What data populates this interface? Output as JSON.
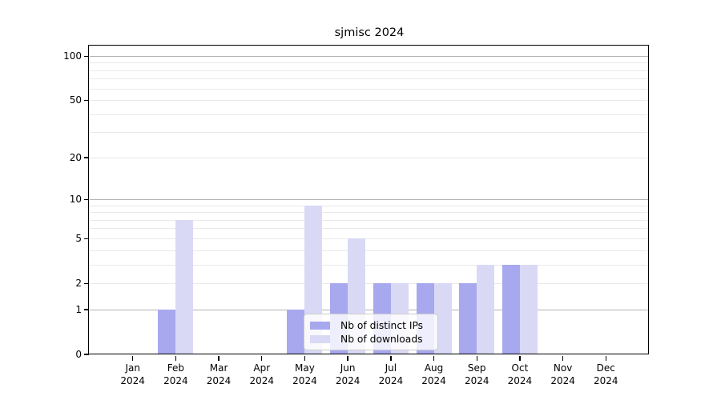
{
  "chart_data": {
    "type": "bar",
    "title": "sjmisc 2024",
    "categories": [
      "Jan 2024",
      "Feb 2024",
      "Mar 2024",
      "Apr 2024",
      "May 2024",
      "Jun 2024",
      "Jul 2024",
      "Aug 2024",
      "Sep 2024",
      "Oct 2024",
      "Nov 2024",
      "Dec 2024"
    ],
    "series": [
      {
        "name": "Nb of distinct IPs",
        "color": "#a8a8ef",
        "values": [
          0,
          1,
          0,
          0,
          1,
          2,
          2,
          2,
          2,
          3,
          0,
          0
        ]
      },
      {
        "name": "Nb of downloads",
        "color": "#d9d9f6",
        "values": [
          0,
          7,
          0,
          0,
          9,
          5,
          2,
          2,
          3,
          3,
          0,
          0
        ]
      }
    ],
    "yscale": "log1p",
    "ylim": [
      0,
      116.6
    ],
    "y_ticks": [
      0,
      1,
      2,
      5,
      10,
      20,
      50,
      100
    ],
    "grid_major": [
      1,
      10,
      100
    ],
    "grid_minor": [
      2,
      3,
      4,
      5,
      6,
      7,
      8,
      9,
      20,
      30,
      40,
      50,
      60,
      70,
      80,
      90
    ],
    "grid": true,
    "legend_position": "lower-center-inside",
    "legend_entries": [
      "Nb of distinct IPs",
      "Nb of downloads"
    ]
  },
  "styles": {
    "background": "#ffffff",
    "axis_color": "#000000",
    "grid_major_color": "#b3b3b3",
    "grid_minor_color": "#e9e9e9",
    "tick_label_color": "#000000",
    "legend_border_color": "#cccccc"
  }
}
